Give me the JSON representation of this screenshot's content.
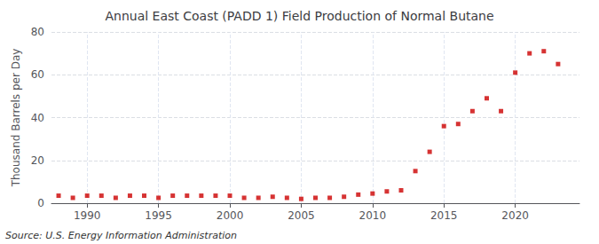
{
  "chart_data": {
    "type": "scatter",
    "title": "Annual East Coast (PADD 1) Field Production of Normal Butane",
    "ylabel": "Thousand Barrels per Day",
    "annotations": [
      "Source: U.S. Energy Information Administration"
    ],
    "x": [
      1988,
      1989,
      1990,
      1991,
      1992,
      1993,
      1994,
      1995,
      1996,
      1997,
      1998,
      1999,
      2000,
      2001,
      2002,
      2003,
      2004,
      2005,
      2006,
      2007,
      2008,
      2009,
      2010,
      2011,
      2012,
      2013,
      2014,
      2015,
      2016,
      2017,
      2018,
      2019,
      2020,
      2021,
      2022,
      2023
    ],
    "values": [
      3.5,
      2.5,
      3.5,
      3.5,
      2.5,
      3.5,
      3.5,
      2.5,
      3.5,
      3.5,
      3.5,
      3.5,
      3.5,
      2.5,
      2.5,
      3.0,
      2.5,
      2.0,
      2.5,
      2.5,
      3.0,
      4.0,
      4.5,
      5.5,
      6.0,
      15.0,
      24.0,
      36.0,
      37.0,
      43.0,
      49.0,
      43.0,
      61.0,
      70.0,
      71.0,
      65.0
    ],
    "color": "#cc0000",
    "marker": "square",
    "xlim": [
      1987.5,
      2024.5
    ],
    "xticks": [
      1990,
      1995,
      2000,
      2005,
      2010,
      2015,
      2020
    ],
    "ylim": [
      0,
      80
    ],
    "yticks": [
      0,
      20,
      40,
      60,
      80
    ],
    "grid": true
  }
}
